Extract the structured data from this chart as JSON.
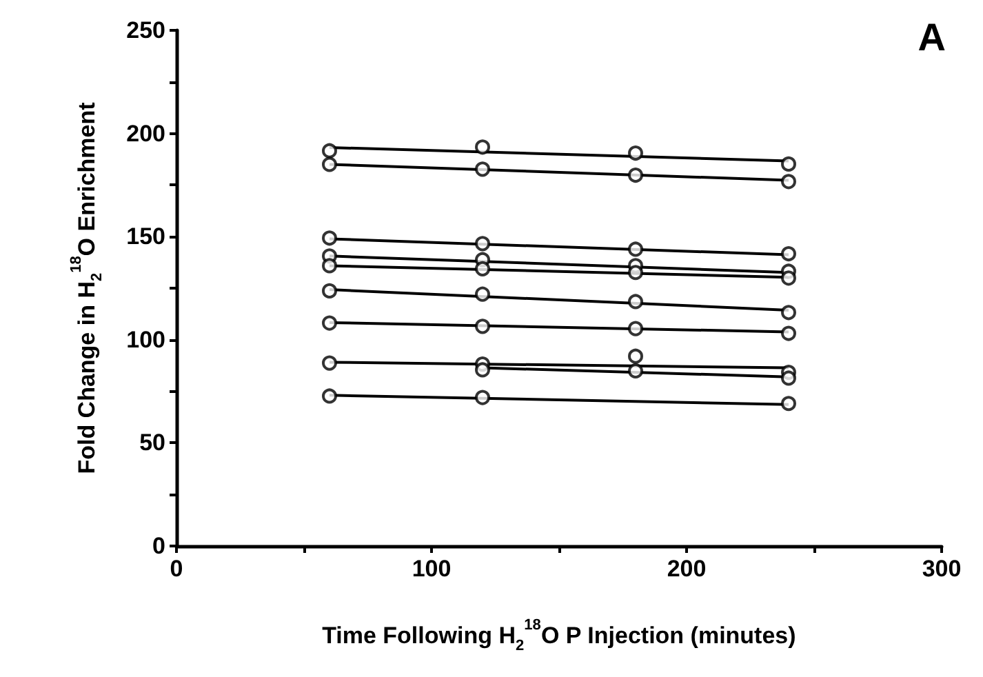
{
  "chart_data": {
    "type": "line",
    "title": "A",
    "xlabel": "Time Following H$_{2}$$^{18}$O P Injection (minutes)",
    "ylabel": "Fold Change in H$_{2}$$^{18}$O Enrichment",
    "xlim": [
      0,
      300
    ],
    "xticks": [
      0,
      {
        "value": 50,
        "label": null
      },
      100,
      {
        "value": 150,
        "label": null
      },
      200,
      {
        "value": 250,
        "label": null
      },
      300
    ],
    "ylim": [
      0,
      250
    ],
    "yticks": [
      0,
      {
        "value": 25,
        "label": null
      },
      50,
      {
        "value": 75,
        "label": null
      },
      100,
      {
        "value": 125,
        "label": null
      },
      150,
      {
        "value": 175,
        "label": null
      },
      200,
      {
        "value": 225,
        "label": null
      },
      250
    ],
    "grid": false,
    "line_style": "solid",
    "series": [
      {
        "marker": "none",
        "color": "#000000",
        "x": [
          60,
          240
        ],
        "values": [
          193.2,
          186.7
        ]
      },
      {
        "marker": "none",
        "color": "#000000",
        "x": [
          60,
          240
        ],
        "values": [
          185,
          177.3
        ]
      },
      {
        "marker": "none",
        "color": "#000000",
        "x": [
          60,
          240
        ],
        "values": [
          148.9,
          141.2
        ]
      },
      {
        "marker": "none",
        "color": "#000000",
        "x": [
          60,
          240
        ],
        "values": [
          140.6,
          132.6
        ]
      },
      {
        "marker": "none",
        "color": "#000000",
        "x": [
          60,
          240
        ],
        "values": [
          135.9,
          130.3
        ]
      },
      {
        "marker": "none",
        "color": "#000000",
        "x": [
          60,
          240
        ],
        "values": [
          124.3,
          114.3
        ]
      },
      {
        "marker": "none",
        "color": "#000000",
        "x": [
          60,
          240
        ],
        "values": [
          108.3,
          103.8
        ]
      },
      {
        "marker": "none",
        "color": "#000000",
        "x": [
          60,
          240
        ],
        "values": [
          89.1,
          86.4
        ]
      },
      {
        "marker": "none",
        "color": "#000000",
        "x": [
          120,
          240
        ],
        "values": [
          86.4,
          82
        ]
      },
      {
        "marker": "none",
        "color": "#000000",
        "x": [
          60,
          240
        ],
        "values": [
          73.1,
          68.6
        ]
      },
      {
        "type": "scatter",
        "marker": "circle",
        "color": "#000000",
        "x": [
          60,
          120,
          180,
          240,
          60,
          120,
          180,
          240,
          60,
          120,
          180,
          240,
          60,
          120,
          180,
          240,
          60,
          120,
          180,
          240,
          60,
          120,
          180,
          240,
          60,
          120,
          180,
          240,
          60,
          120,
          180,
          240,
          120,
          180,
          240,
          60,
          120,
          240
        ],
        "values": [
          191.6,
          193.4,
          190.5,
          185.2,
          185,
          182.7,
          179.8,
          176.7,
          149.3,
          146.6,
          143.9,
          141.7,
          140.6,
          138.8,
          135.9,
          133.2,
          135.9,
          134.4,
          132.6,
          129.9,
          123.7,
          122.1,
          118.5,
          113.2,
          108.1,
          106.5,
          105.4,
          103.1,
          88.7,
          88.2,
          92,
          84.2,
          85.4,
          84.9,
          81.4,
          72.7,
          72,
          69.1
        ]
      }
    ]
  }
}
